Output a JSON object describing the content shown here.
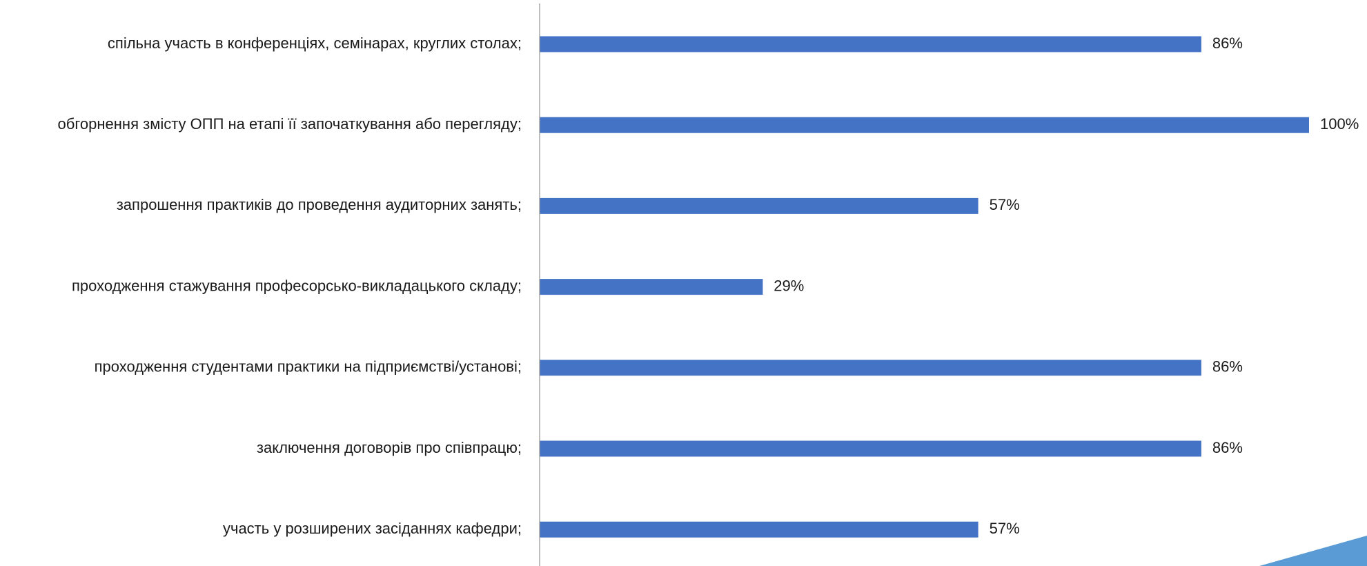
{
  "chart_data": {
    "type": "bar",
    "orientation": "horizontal",
    "categories": [
      "спільна участь в конференціях, семінарах, круглих столах;",
      "обгорнення змісту ОПП на етапі її започаткування або перегляду;",
      "запрошення практиків до проведення аудиторних занять;",
      "проходження стажування професорсько-викладацького складу;",
      "проходження студентами практики на підприємстві/установі;",
      "заключення договорів про співпрацю;",
      "участь у розширених засіданнях кафедри;"
    ],
    "values": [
      86,
      100,
      57,
      29,
      86,
      86,
      57
    ],
    "data_labels": [
      "86%",
      "100%",
      "57%",
      "29%",
      "86%",
      "86%",
      "57%"
    ],
    "value_unit": "%",
    "xlim": [
      0,
      100
    ],
    "title": "",
    "xlabel": "",
    "ylabel": "",
    "grid": false,
    "legend": "none",
    "colors": {
      "bar": "#4472C4",
      "axis": "#9a9a9a",
      "text": "#1a1a1a",
      "decoration_light": "#a9cdee",
      "decoration_dark": "#5b9bd5"
    }
  }
}
